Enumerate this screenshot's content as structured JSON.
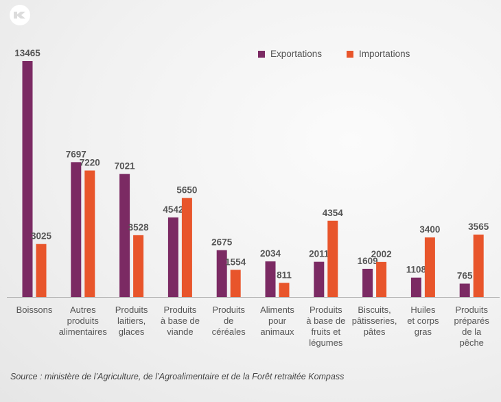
{
  "logo": {
    "icon": "kompass-k-logo-icon"
  },
  "chart_data": {
    "type": "bar",
    "title": "",
    "xlabel": "",
    "ylabel": "",
    "ylim": [
      0,
      13465
    ],
    "grid": false,
    "legend_position": "top-right",
    "categories": [
      [
        "Boissons"
      ],
      [
        "Autres",
        "produits",
        "alimentaires"
      ],
      [
        "Produits",
        "laitiers,",
        "glaces"
      ],
      [
        "Produits",
        "à base de",
        "viande"
      ],
      [
        "Produits",
        "de",
        "céréales"
      ],
      [
        "Aliments",
        "pour",
        "animaux"
      ],
      [
        "Produits",
        "à base de",
        "fruits et",
        "légumes"
      ],
      [
        "Biscuits,",
        "pâtisseries,",
        "pâtes"
      ],
      [
        "Huiles",
        "et corps",
        "gras"
      ],
      [
        "Produits",
        "préparés",
        "de la",
        "pêche"
      ]
    ],
    "series": [
      {
        "name": "Exportations",
        "color": "#7b2a63",
        "values": [
          13465,
          7697,
          7021,
          4542,
          2675,
          2034,
          2011,
          1609,
          1108,
          765
        ]
      },
      {
        "name": "Importations",
        "color": "#e8552b",
        "values": [
          3025,
          7220,
          3528,
          5650,
          1554,
          811,
          4354,
          2002,
          3400,
          3565
        ]
      }
    ]
  },
  "source": "Source : ministère de l’Agriculture, de l’Agroalimentaire et de la Forêt retraitée Kompass"
}
